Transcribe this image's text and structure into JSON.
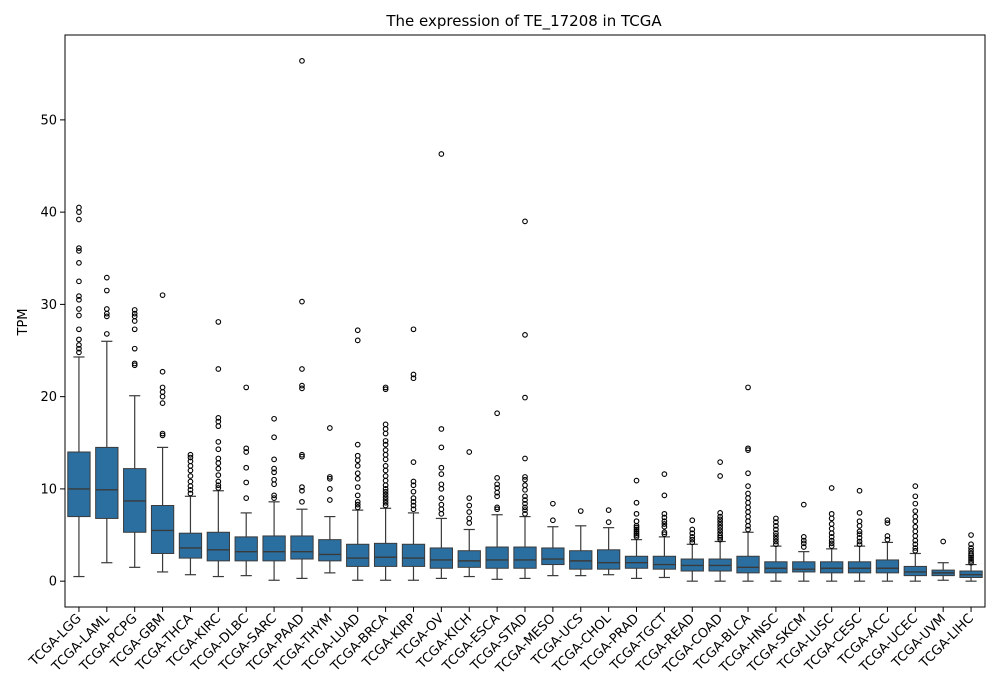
{
  "chart_data": {
    "type": "box",
    "title": "The expression of TE_17208 in TCGA",
    "xlabel": "",
    "ylabel": "TPM",
    "ylim": [
      -2.8,
      59.2
    ],
    "yticks": [
      0,
      10,
      20,
      30,
      40,
      50
    ],
    "box_color": "#2b6fa1",
    "categories": [
      "TCGA-LGG",
      "TCGA-LAML",
      "TCGA-PCPG",
      "TCGA-GBM",
      "TCGA-THCA",
      "TCGA-KIRC",
      "TCGA-DLBC",
      "TCGA-SARC",
      "TCGA-PAAD",
      "TCGA-THYM",
      "TCGA-LUAD",
      "TCGA-BRCA",
      "TCGA-KIRP",
      "TCGA-OV",
      "TCGA-KICH",
      "TCGA-ESCA",
      "TCGA-STAD",
      "TCGA-MESO",
      "TCGA-UCS",
      "TCGA-CHOL",
      "TCGA-PRAD",
      "TCGA-TGCT",
      "TCGA-READ",
      "TCGA-COAD",
      "TCGA-BLCA",
      "TCGA-HNSC",
      "TCGA-SKCM",
      "TCGA-LUSC",
      "TCGA-CESC",
      "TCGA-ACC",
      "TCGA-UCEC",
      "TCGA-UVM",
      "TCGA-LIHC"
    ],
    "boxes": [
      {
        "whislo": 0.5,
        "q1": 7.0,
        "med": 10.0,
        "q3": 14.0,
        "whishi": 24.3,
        "fliers": [
          24.8,
          25.2,
          25.6,
          26.2,
          27.3,
          28.8,
          29.5,
          30.5,
          30.9,
          32.5,
          34.5,
          35.8,
          36.1,
          39.2,
          40.0,
          40.5
        ]
      },
      {
        "whislo": 2.0,
        "q1": 6.8,
        "med": 9.9,
        "q3": 14.5,
        "whishi": 26.0,
        "fliers": [
          26.8,
          28.7,
          29.0,
          29.5,
          31.5,
          32.9
        ]
      },
      {
        "whislo": 1.5,
        "q1": 5.3,
        "med": 8.7,
        "q3": 12.2,
        "whishi": 20.1,
        "fliers": [
          23.4,
          23.6,
          25.2,
          27.3,
          28.2,
          28.7,
          29.0,
          29.4
        ]
      },
      {
        "whislo": 1.0,
        "q1": 3.0,
        "med": 5.5,
        "q3": 8.2,
        "whishi": 14.5,
        "fliers": [
          15.8,
          16.0,
          19.3,
          20.0,
          20.5,
          21.0,
          22.7,
          31.0
        ]
      },
      {
        "whislo": 0.7,
        "q1": 2.5,
        "med": 3.6,
        "q3": 5.2,
        "whishi": 9.2,
        "fliers": [
          9.5,
          9.9,
          10.3,
          10.8,
          11.4,
          12.0,
          12.5,
          13.0,
          13.4,
          13.7
        ]
      },
      {
        "whislo": 0.5,
        "q1": 2.2,
        "med": 3.4,
        "q3": 5.3,
        "whishi": 9.8,
        "fliers": [
          10.1,
          10.4,
          10.8,
          11.5,
          12.2,
          12.8,
          13.3,
          14.3,
          15.1,
          16.8,
          17.3,
          17.7,
          23.0,
          28.1
        ]
      },
      {
        "whislo": 0.6,
        "q1": 2.2,
        "med": 3.2,
        "q3": 4.8,
        "whishi": 7.4,
        "fliers": [
          9.0,
          10.7,
          12.3,
          14.0,
          14.4,
          21.0
        ]
      },
      {
        "whislo": 0.1,
        "q1": 2.2,
        "med": 3.2,
        "q3": 4.9,
        "whishi": 8.6,
        "fliers": [
          9.0,
          9.3,
          10.5,
          11.0,
          11.8,
          12.2,
          13.2,
          15.6,
          17.6
        ]
      },
      {
        "whislo": 0.3,
        "q1": 2.4,
        "med": 3.2,
        "q3": 4.9,
        "whishi": 7.8,
        "fliers": [
          8.6,
          9.8,
          10.2,
          13.5,
          13.7,
          20.9,
          21.2,
          23.0,
          30.3,
          56.4
        ]
      },
      {
        "whislo": 0.9,
        "q1": 2.2,
        "med": 2.9,
        "q3": 4.5,
        "whishi": 7.0,
        "fliers": [
          8.8,
          10.0,
          11.1,
          11.3,
          16.6
        ]
      },
      {
        "whislo": 0.1,
        "q1": 1.6,
        "med": 2.5,
        "q3": 4.0,
        "whishi": 7.7,
        "fliers": [
          8.0,
          8.3,
          8.6,
          9.3,
          10.2,
          11.1,
          11.7,
          12.5,
          13.1,
          13.6,
          14.8,
          26.1,
          27.2
        ]
      },
      {
        "whislo": 0.1,
        "q1": 1.6,
        "med": 2.6,
        "q3": 4.1,
        "whishi": 7.9,
        "fliers": [
          8.2,
          8.5,
          8.8,
          9.1,
          9.4,
          9.7,
          10.0,
          10.4,
          10.9,
          11.4,
          12.0,
          12.5,
          13.2,
          13.7,
          14.2,
          14.8,
          15.2,
          16.0,
          16.5,
          17.0,
          20.8,
          21.0
        ]
      },
      {
        "whislo": 0.1,
        "q1": 1.6,
        "med": 2.5,
        "q3": 4.0,
        "whishi": 7.4,
        "fliers": [
          7.8,
          8.2,
          8.6,
          9.0,
          9.7,
          10.4,
          10.8,
          12.9,
          22.0,
          22.4,
          27.3
        ]
      },
      {
        "whislo": 0.3,
        "q1": 1.4,
        "med": 2.3,
        "q3": 3.6,
        "whishi": 6.8,
        "fliers": [
          7.3,
          7.8,
          8.3,
          9.0,
          10.0,
          10.5,
          11.6,
          12.3,
          14.5,
          16.5,
          46.3
        ]
      },
      {
        "whislo": 0.5,
        "q1": 1.5,
        "med": 2.2,
        "q3": 3.3,
        "whishi": 5.6,
        "fliers": [
          6.3,
          6.8,
          7.5,
          8.2,
          9.0,
          14.0
        ]
      },
      {
        "whislo": 0.2,
        "q1": 1.4,
        "med": 2.3,
        "q3": 3.7,
        "whishi": 7.2,
        "fliers": [
          7.8,
          8.0,
          9.2,
          9.6,
          10.1,
          10.5,
          11.2,
          18.2
        ]
      },
      {
        "whislo": 0.3,
        "q1": 1.4,
        "med": 2.3,
        "q3": 3.7,
        "whishi": 7.0,
        "fliers": [
          7.3,
          7.7,
          8.0,
          8.4,
          8.8,
          9.2,
          9.9,
          10.4,
          11.0,
          11.3,
          13.3,
          19.9,
          26.7,
          39.0
        ]
      },
      {
        "whislo": 0.6,
        "q1": 1.8,
        "med": 2.4,
        "q3": 3.6,
        "whishi": 5.9,
        "fliers": [
          6.6,
          8.4
        ]
      },
      {
        "whislo": 0.6,
        "q1": 1.3,
        "med": 2.2,
        "q3": 3.3,
        "whishi": 6.0,
        "fliers": [
          7.6
        ]
      },
      {
        "whislo": 0.7,
        "q1": 1.3,
        "med": 2.0,
        "q3": 3.4,
        "whishi": 5.8,
        "fliers": [
          6.4,
          7.7
        ]
      },
      {
        "whislo": 0.3,
        "q1": 1.4,
        "med": 2.0,
        "q3": 2.7,
        "whishi": 4.5,
        "fliers": [
          4.8,
          5.0,
          5.2,
          5.4,
          5.6,
          5.8,
          6.0,
          6.5,
          7.3,
          8.5,
          10.9
        ]
      },
      {
        "whislo": 0.4,
        "q1": 1.3,
        "med": 1.8,
        "q3": 2.7,
        "whishi": 4.8,
        "fliers": [
          5.1,
          5.3,
          5.9,
          6.2,
          6.5,
          6.9,
          7.3,
          9.3,
          11.6
        ]
      },
      {
        "whislo": 0.0,
        "q1": 1.1,
        "med": 1.7,
        "q3": 2.4,
        "whishi": 4.0,
        "fliers": [
          4.2,
          4.5,
          4.8,
          5.2,
          5.6,
          6.6
        ]
      },
      {
        "whislo": 0.0,
        "q1": 1.1,
        "med": 1.7,
        "q3": 2.4,
        "whishi": 4.3,
        "fliers": [
          4.5,
          4.7,
          4.9,
          5.2,
          5.5,
          5.8,
          6.1,
          6.4,
          6.7,
          7.0,
          7.4,
          11.4,
          12.9
        ]
      },
      {
        "whislo": 0.0,
        "q1": 0.9,
        "med": 1.5,
        "q3": 2.7,
        "whishi": 5.3,
        "fliers": [
          5.6,
          6.0,
          6.5,
          7.0,
          7.5,
          8.0,
          8.5,
          9.0,
          9.5,
          10.3,
          11.7,
          14.2,
          14.4,
          21.0
        ]
      },
      {
        "whislo": 0.0,
        "q1": 0.9,
        "med": 1.4,
        "q3": 2.1,
        "whishi": 3.8,
        "fliers": [
          4.0,
          4.3,
          4.6,
          4.9,
          5.2,
          5.6,
          6.0,
          6.4,
          6.8
        ]
      },
      {
        "whislo": 0.0,
        "q1": 1.0,
        "med": 1.3,
        "q3": 2.1,
        "whishi": 3.2,
        "fliers": [
          3.7,
          4.1,
          4.4,
          4.8,
          8.3
        ]
      },
      {
        "whislo": 0.0,
        "q1": 0.9,
        "med": 1.4,
        "q3": 2.1,
        "whishi": 3.5,
        "fliers": [
          3.8,
          4.1,
          4.4,
          4.8,
          5.2,
          5.7,
          6.2,
          6.8,
          7.3,
          10.1
        ]
      },
      {
        "whislo": 0.0,
        "q1": 0.9,
        "med": 1.4,
        "q3": 2.1,
        "whishi": 3.8,
        "fliers": [
          4.0,
          4.3,
          4.7,
          5.1,
          5.4,
          6.0,
          6.5,
          7.4,
          9.8
        ]
      },
      {
        "whislo": 0.0,
        "q1": 0.9,
        "med": 1.4,
        "q3": 2.3,
        "whishi": 4.2,
        "fliers": [
          4.5,
          4.9,
          6.3,
          6.6
        ]
      },
      {
        "whislo": 0.0,
        "q1": 0.6,
        "med": 1.0,
        "q3": 1.6,
        "whishi": 3.0,
        "fliers": [
          3.3,
          3.6,
          4.0,
          4.4,
          4.9,
          5.4,
          5.9,
          6.5,
          7.0,
          7.6,
          8.4,
          9.2,
          10.3
        ]
      },
      {
        "whislo": 0.1,
        "q1": 0.6,
        "med": 0.9,
        "q3": 1.2,
        "whishi": 2.0,
        "fliers": [
          4.3
        ]
      },
      {
        "whislo": 0.0,
        "q1": 0.4,
        "med": 0.7,
        "q3": 1.1,
        "whishi": 1.8,
        "fliers": [
          2.0,
          2.2,
          2.4,
          2.6,
          2.8,
          3.0,
          3.3,
          3.6,
          4.0,
          5.0
        ]
      }
    ]
  }
}
